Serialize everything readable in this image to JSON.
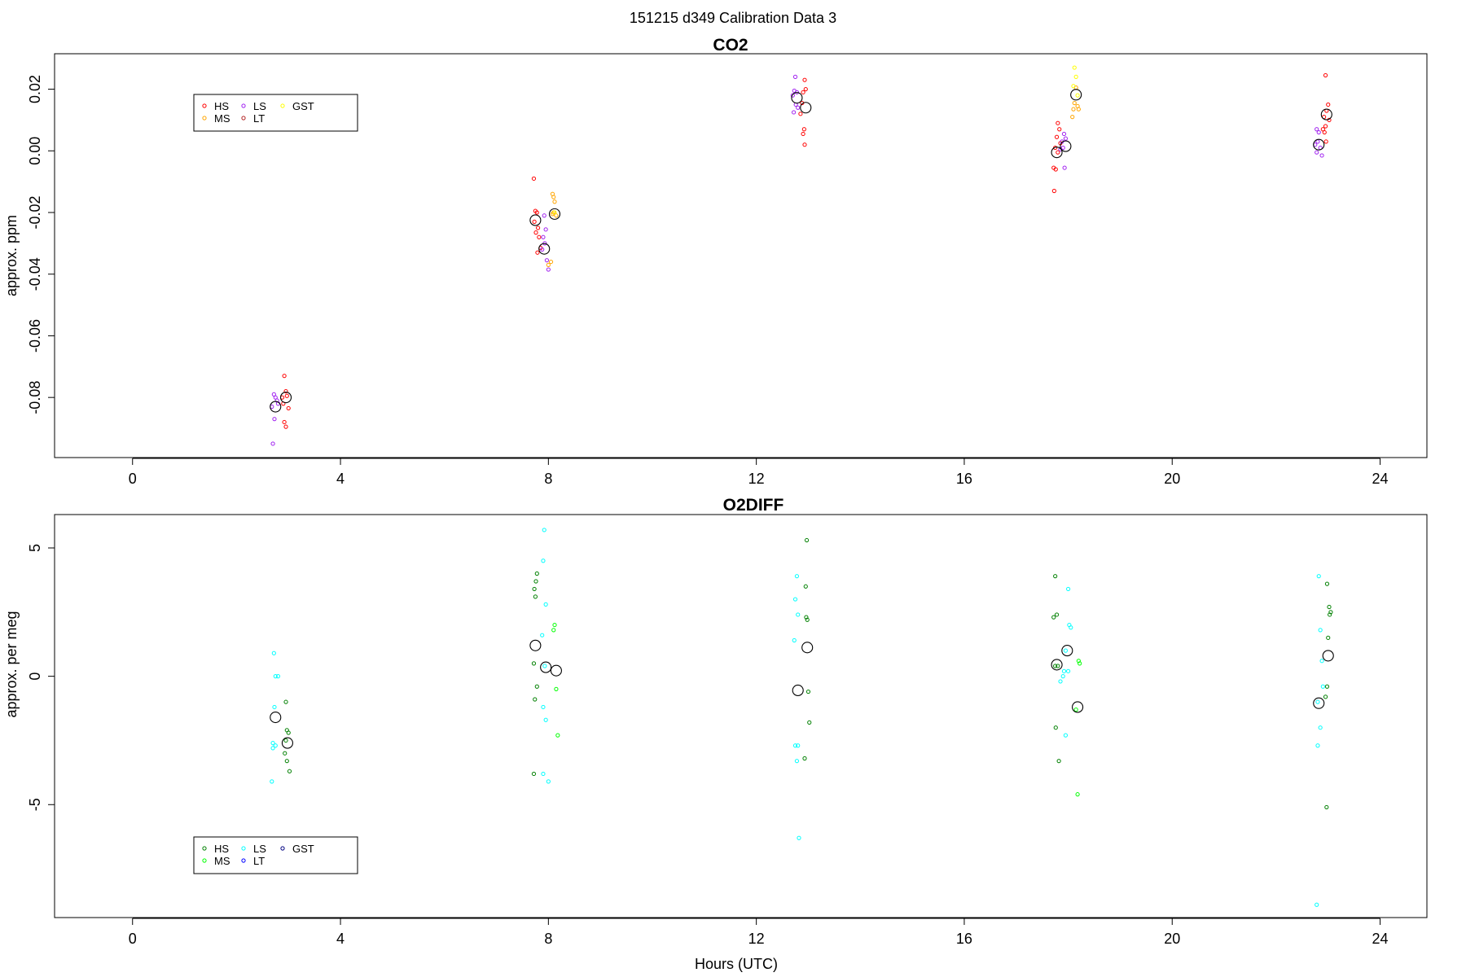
{
  "figure": {
    "title": "151215   d349   Calibration Data 3",
    "xlabel": "Hours (UTC)"
  },
  "chart_data": [
    {
      "type": "scatter",
      "title": "CO2",
      "ylabel": "approx. ppm",
      "xlim": [
        -1.5,
        24.9
      ],
      "ylim": [
        -0.0995,
        0.0315
      ],
      "xticks": [
        0,
        4,
        8,
        12,
        16,
        20,
        24
      ],
      "yticks": [
        -0.08,
        -0.06,
        -0.04,
        -0.02,
        0.0,
        0.02
      ],
      "ytick_labels": [
        "-0.08",
        "-0.06",
        "-0.04",
        "-0.02",
        "0.00",
        "0.02"
      ],
      "legend": {
        "position": "top-left",
        "entries": [
          {
            "name": "HS",
            "color": "#ff0000"
          },
          {
            "name": "MS",
            "color": "#ffa500"
          },
          {
            "name": "LS",
            "color": "#a020f0"
          },
          {
            "name": "LT",
            "color": "#b22222"
          },
          {
            "name": "GST",
            "color": "#ffff00"
          }
        ]
      },
      "series": [
        {
          "name": "HS",
          "color": "#ff0000",
          "points": [
            [
              2.92,
              -0.073
            ],
            [
              2.95,
              -0.078
            ],
            [
              2.97,
              -0.0795
            ],
            [
              2.9,
              -0.082
            ],
            [
              2.92,
              -0.088
            ],
            [
              2.95,
              -0.0895
            ],
            [
              3.0,
              -0.0835
            ],
            [
              2.88,
              -0.08
            ],
            [
              7.72,
              -0.009
            ],
            [
              7.75,
              -0.0195
            ],
            [
              7.78,
              -0.02
            ],
            [
              7.73,
              -0.023
            ],
            [
              7.8,
              -0.025
            ],
            [
              7.76,
              -0.0265
            ],
            [
              7.82,
              -0.028
            ],
            [
              7.85,
              -0.0315
            ],
            [
              7.79,
              -0.033
            ],
            [
              12.93,
              0.023
            ],
            [
              12.9,
              0.019
            ],
            [
              12.95,
              0.02
            ],
            [
              12.88,
              0.0155
            ],
            [
              12.85,
              0.012
            ],
            [
              12.92,
              0.007
            ],
            [
              12.9,
              0.0055
            ],
            [
              12.93,
              0.002
            ],
            [
              17.8,
              0.009
            ],
            [
              17.83,
              0.007
            ],
            [
              17.78,
              0.0045
            ],
            [
              17.75,
              0.001
            ],
            [
              17.8,
              -0.0005
            ],
            [
              17.72,
              -0.0055
            ],
            [
              17.76,
              -0.006
            ],
            [
              17.73,
              -0.013
            ],
            [
              17.85,
              0.0025
            ],
            [
              22.95,
              0.0245
            ],
            [
              23.0,
              0.015
            ],
            [
              22.97,
              0.013
            ],
            [
              22.92,
              0.011
            ],
            [
              23.02,
              0.01
            ],
            [
              22.95,
              0.008
            ],
            [
              22.9,
              0.007
            ],
            [
              22.93,
              0.006
            ],
            [
              22.96,
              0.003
            ]
          ]
        },
        {
          "name": "MS",
          "color": "#ffa500",
          "points": [
            [
              8.08,
              -0.014
            ],
            [
              8.1,
              -0.015
            ],
            [
              8.12,
              -0.0165
            ],
            [
              8.1,
              -0.02
            ],
            [
              8.15,
              -0.021
            ],
            [
              8.05,
              -0.036
            ],
            [
              8.0,
              -0.037
            ],
            [
              8.08,
              -0.0205
            ],
            [
              18.15,
              0.0205
            ],
            [
              18.12,
              0.0155
            ],
            [
              18.18,
              0.0145
            ],
            [
              18.1,
              0.0135
            ],
            [
              18.2,
              0.0135
            ],
            [
              18.08,
              0.011
            ]
          ]
        },
        {
          "name": "LS",
          "color": "#a020f0",
          "points": [
            [
              2.72,
              -0.079
            ],
            [
              2.75,
              -0.08
            ],
            [
              2.78,
              -0.081
            ],
            [
              2.8,
              -0.082
            ],
            [
              2.68,
              -0.083
            ],
            [
              2.73,
              -0.087
            ],
            [
              2.7,
              -0.095
            ],
            [
              7.92,
              -0.021
            ],
            [
              7.95,
              -0.0255
            ],
            [
              7.9,
              -0.028
            ],
            [
              7.93,
              -0.03
            ],
            [
              7.88,
              -0.032
            ],
            [
              7.97,
              -0.0355
            ],
            [
              8.0,
              -0.0385
            ],
            [
              12.75,
              0.024
            ],
            [
              12.73,
              0.0195
            ],
            [
              12.78,
              0.019
            ],
            [
              12.7,
              0.018
            ],
            [
              12.76,
              0.015
            ],
            [
              12.8,
              0.014
            ],
            [
              12.72,
              0.0125
            ],
            [
              17.92,
              0.0055
            ],
            [
              17.95,
              0.004
            ],
            [
              17.88,
              0.003
            ],
            [
              17.9,
              0.001
            ],
            [
              17.85,
              0.0005
            ],
            [
              17.93,
              -0.0055
            ],
            [
              22.78,
              0.007
            ],
            [
              22.82,
              0.006
            ],
            [
              22.8,
              0.003
            ],
            [
              22.75,
              0.002
            ],
            [
              22.85,
              0.001
            ],
            [
              22.78,
              -0.0005
            ],
            [
              22.88,
              -0.0015
            ]
          ]
        },
        {
          "name": "LT",
          "color": "#b22222",
          "points": []
        },
        {
          "name": "GST",
          "color": "#ffff00",
          "points": [
            [
              18.12,
              0.027
            ],
            [
              18.15,
              0.024
            ],
            [
              18.18,
              0.018
            ],
            [
              18.1,
              0.021
            ],
            [
              8.12,
              -0.02
            ]
          ]
        },
        {
          "name": "mean",
          "color": "#000000",
          "marker": "large-circle",
          "points": [
            [
              2.75,
              -0.083
            ],
            [
              2.95,
              -0.08
            ],
            [
              7.75,
              -0.0225
            ],
            [
              7.92,
              -0.0318
            ],
            [
              8.12,
              -0.0205
            ],
            [
              12.78,
              0.0172
            ],
            [
              12.95,
              0.014
            ],
            [
              17.78,
              -0.0005
            ],
            [
              17.95,
              0.0015
            ],
            [
              18.15,
              0.0182
            ],
            [
              22.82,
              0.002
            ],
            [
              22.97,
              0.0118
            ]
          ]
        }
      ]
    },
    {
      "type": "scatter",
      "title": "O2DIFF",
      "ylabel": "approx. per meg",
      "xlim": [
        -1.5,
        24.9
      ],
      "ylim": [
        -9.4,
        6.3
      ],
      "xticks": [
        0,
        4,
        8,
        12,
        16,
        20,
        24
      ],
      "yticks": [
        -5,
        0,
        5
      ],
      "ytick_labels": [
        "-5",
        "0",
        "5"
      ],
      "legend": {
        "position": "bottom-left",
        "entries": [
          {
            "name": "HS",
            "color": "#008000"
          },
          {
            "name": "MS",
            "color": "#00ff00"
          },
          {
            "name": "LS",
            "color": "#00ffff"
          },
          {
            "name": "LT",
            "color": "#0000ff"
          },
          {
            "name": "GST",
            "color": "#000080"
          }
        ]
      },
      "series": [
        {
          "name": "HS",
          "color": "#008000",
          "points": [
            [
              2.95,
              -1.0
            ],
            [
              2.97,
              -2.1
            ],
            [
              3.0,
              -2.2
            ],
            [
              2.95,
              -2.5
            ],
            [
              2.93,
              -3.0
            ],
            [
              2.97,
              -3.3
            ],
            [
              3.02,
              -3.7
            ],
            [
              7.78,
              4.0
            ],
            [
              7.76,
              3.7
            ],
            [
              7.73,
              3.4
            ],
            [
              7.75,
              3.1
            ],
            [
              7.72,
              0.5
            ],
            [
              7.78,
              -0.4
            ],
            [
              7.74,
              -0.9
            ],
            [
              7.72,
              -3.8
            ],
            [
              12.97,
              5.3
            ],
            [
              12.95,
              3.5
            ],
            [
              12.98,
              2.2
            ],
            [
              12.96,
              2.3
            ],
            [
              13.0,
              -0.6
            ],
            [
              13.02,
              -1.8
            ],
            [
              12.93,
              -3.2
            ],
            [
              17.75,
              3.9
            ],
            [
              17.78,
              2.4
            ],
            [
              17.72,
              2.3
            ],
            [
              17.75,
              0.4
            ],
            [
              17.8,
              0.4
            ],
            [
              17.76,
              -2.0
            ],
            [
              17.82,
              -3.3
            ],
            [
              22.98,
              3.6
            ],
            [
              23.02,
              2.7
            ],
            [
              23.05,
              2.5
            ],
            [
              23.0,
              1.5
            ],
            [
              22.98,
              -0.4
            ],
            [
              22.95,
              -0.8
            ],
            [
              22.97,
              -5.1
            ],
            [
              23.03,
              2.4
            ]
          ]
        },
        {
          "name": "MS",
          "color": "#00ff00",
          "points": [
            [
              8.12,
              2.0
            ],
            [
              8.1,
              1.8
            ],
            [
              8.15,
              -0.5
            ],
            [
              8.18,
              -2.3
            ],
            [
              18.2,
              0.6
            ],
            [
              18.22,
              0.5
            ],
            [
              18.15,
              -1.3
            ],
            [
              18.18,
              -4.6
            ]
          ]
        },
        {
          "name": "LS",
          "color": "#00ffff",
          "points": [
            [
              2.72,
              0.9
            ],
            [
              2.75,
              0.0
            ],
            [
              2.8,
              0.0
            ],
            [
              2.73,
              -1.2
            ],
            [
              2.7,
              -2.6
            ],
            [
              2.75,
              -2.7
            ],
            [
              2.7,
              -2.8
            ],
            [
              2.68,
              -4.1
            ],
            [
              7.92,
              5.7
            ],
            [
              7.9,
              4.5
            ],
            [
              7.95,
              2.8
            ],
            [
              7.88,
              1.6
            ],
            [
              7.93,
              0.4
            ],
            [
              7.9,
              -1.2
            ],
            [
              7.95,
              -1.7
            ],
            [
              7.9,
              -3.8
            ],
            [
              8.0,
              -4.1
            ],
            [
              12.78,
              3.9
            ],
            [
              12.75,
              3.0
            ],
            [
              12.8,
              2.4
            ],
            [
              12.73,
              1.4
            ],
            [
              12.8,
              -2.7
            ],
            [
              12.75,
              -2.7
            ],
            [
              12.78,
              -3.3
            ],
            [
              12.82,
              -6.3
            ],
            [
              18.0,
              3.4
            ],
            [
              18.02,
              2.0
            ],
            [
              18.05,
              1.9
            ],
            [
              17.95,
              1.0
            ],
            [
              18.0,
              0.2
            ],
            [
              17.92,
              0.2
            ],
            [
              17.9,
              0.0
            ],
            [
              17.85,
              -0.2
            ],
            [
              17.95,
              -2.3
            ],
            [
              22.82,
              3.9
            ],
            [
              22.85,
              1.8
            ],
            [
              22.88,
              0.6
            ],
            [
              22.9,
              -0.4
            ],
            [
              22.8,
              -1.0
            ],
            [
              22.85,
              -2.0
            ],
            [
              22.8,
              -2.7
            ],
            [
              22.78,
              -8.9
            ]
          ]
        },
        {
          "name": "LT",
          "color": "#0000ff",
          "points": []
        },
        {
          "name": "GST",
          "color": "#000080",
          "points": []
        },
        {
          "name": "mean",
          "color": "#000000",
          "marker": "large-circle",
          "points": [
            [
              2.75,
              -1.6
            ],
            [
              2.98,
              -2.6
            ],
            [
              7.75,
              1.2
            ],
            [
              7.95,
              0.35
            ],
            [
              8.15,
              0.22
            ],
            [
              12.8,
              -0.55
            ],
            [
              12.98,
              1.12
            ],
            [
              17.78,
              0.45
            ],
            [
              17.98,
              1.0
            ],
            [
              18.18,
              -1.2
            ],
            [
              22.82,
              -1.05
            ],
            [
              23.0,
              0.8
            ]
          ]
        }
      ]
    }
  ]
}
